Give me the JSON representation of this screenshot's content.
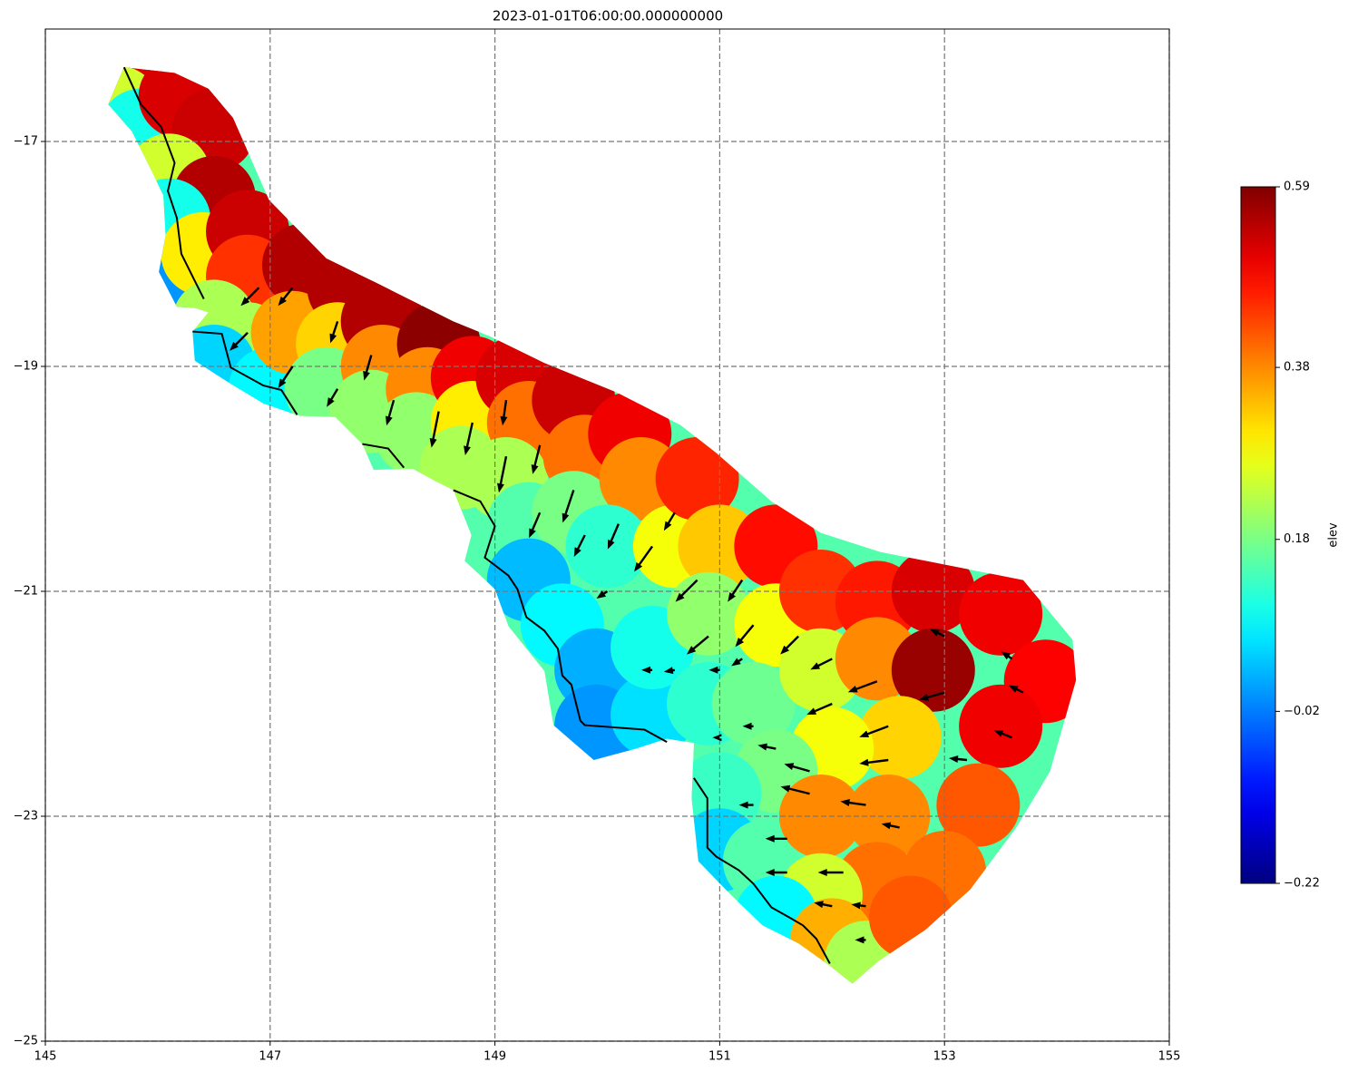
{
  "chart_data": {
    "type": "mesh-quiver",
    "title": "2023-01-01T06:00:00.000000000",
    "xlim": [
      145,
      155
    ],
    "ylim": [
      -25,
      -16
    ],
    "xticks": [
      145,
      147,
      149,
      151,
      153,
      155
    ],
    "yticks": [
      {
        "value": -25,
        "label": "−25"
      },
      {
        "value": -23,
        "label": "−23"
      },
      {
        "value": -21,
        "label": "−21"
      },
      {
        "value": -19,
        "label": "−19"
      },
      {
        "value": -17,
        "label": "−17"
      }
    ],
    "grid": true,
    "cmap": "jet",
    "clim": [
      -0.22,
      0.59
    ],
    "colorbar_label": "elev",
    "colorbar_ticks": [
      {
        "value": -0.22,
        "label": "−0.22"
      },
      {
        "value": -0.02,
        "label": "−0.02"
      },
      0.18,
      0.38,
      0.59
    ],
    "boundary": {
      "lon": [
        145.7,
        146.15,
        146.45,
        146.67,
        146.99,
        147.5,
        147.91,
        148.63,
        148.95,
        149.44,
        150.08,
        150.65,
        150.97,
        151.46,
        151.9,
        152.43,
        152.99,
        153.7,
        154.14,
        154.17,
        153.94,
        153.64,
        153.23,
        152.83,
        152.41,
        152.18,
        151.98,
        151.7,
        151.38,
        151.09,
        150.81,
        150.75,
        150.77,
        150.53,
        150.25,
        149.88,
        149.52,
        149.44,
        149.12,
        149.0,
        148.73,
        148.79,
        148.63,
        148.47,
        148.27,
        147.92,
        147.82,
        147.58,
        147.26,
        146.94,
        146.61,
        146.33,
        146.31,
        146.45,
        146.33,
        146.17,
        146.01,
        146.07,
        146.05,
        145.93,
        145.77,
        145.56
      ],
      "lat": [
        -16.34,
        -16.39,
        -16.53,
        -16.79,
        -17.52,
        -18.04,
        -18.24,
        -18.6,
        -18.73,
        -18.97,
        -19.23,
        -19.52,
        -19.77,
        -20.2,
        -20.48,
        -20.65,
        -20.76,
        -20.9,
        -21.43,
        -21.79,
        -22.6,
        -23.1,
        -23.65,
        -24.01,
        -24.29,
        -24.49,
        -24.33,
        -24.13,
        -23.97,
        -23.69,
        -23.4,
        -22.84,
        -22.35,
        -22.31,
        -22.4,
        -22.5,
        -22.19,
        -21.71,
        -21.31,
        -20.98,
        -20.73,
        -20.5,
        -20.1,
        -20.02,
        -19.91,
        -19.92,
        -19.69,
        -19.45,
        -19.44,
        -19.33,
        -19.13,
        -18.95,
        -18.69,
        -18.52,
        -18.48,
        -18.47,
        -18.16,
        -17.84,
        -17.48,
        -17.23,
        -16.91,
        -16.67
      ]
    },
    "coastline": {
      "lon": [
        145.7,
        145.85,
        146.03,
        146.15,
        146.09,
        146.17,
        146.21,
        146.33,
        146.41,
        null,
        146.31,
        146.57,
        146.65,
        146.94,
        147.1,
        147.24,
        null,
        147.82,
        148.05,
        148.19,
        null,
        148.63,
        148.87,
        149.0,
        148.91,
        149.12,
        149.2,
        149.28,
        149.44,
        149.56,
        149.6,
        149.68,
        149.76,
        149.8,
        150.33,
        150.53,
        null,
        150.77,
        150.89,
        150.89,
        150.97,
        151.17,
        151.3,
        151.46,
        151.62,
        151.74,
        151.86,
        151.98
      ],
      "lat": [
        -16.34,
        -16.67,
        -16.87,
        -17.19,
        -17.44,
        -17.68,
        -18.0,
        -18.24,
        -18.4,
        null,
        -18.69,
        -18.71,
        -19.01,
        -19.17,
        -19.21,
        -19.43,
        null,
        -19.69,
        -19.73,
        -19.9,
        null,
        -20.1,
        -20.2,
        -20.42,
        -20.7,
        -20.86,
        -20.98,
        -21.23,
        -21.35,
        -21.51,
        -21.75,
        -21.83,
        -22.15,
        -22.19,
        -22.23,
        -22.34,
        null,
        -22.66,
        -22.84,
        -23.28,
        -23.36,
        -23.48,
        -23.6,
        -23.81,
        -23.9,
        -23.97,
        -24.09,
        -24.31
      ]
    },
    "nodes": {
      "lon": [
        145.7,
        145.65,
        145.85,
        146.2,
        146.5,
        146.1,
        146.5,
        146.1,
        146.1,
        146.4,
        146.8,
        146.8,
        147.3,
        146.5,
        146.8,
        146.5,
        147.0,
        147.2,
        147.7,
        147.6,
        147.5,
        148.0,
        148.0,
        147.9,
        148.5,
        148.4,
        148.3,
        148.8,
        148.8,
        148.7,
        149.2,
        149.3,
        149.1,
        149.7,
        149.8,
        149.3,
        149.7,
        150.2,
        150.3,
        150.0,
        149.3,
        149.6,
        149.9,
        149.9,
        150.4,
        150.4,
        150.6,
        150.8,
        151.0,
        150.9,
        151.5,
        151.5,
        150.9,
        151.3,
        151.9,
        151.9,
        152.4,
        152.4,
        152.9,
        152.9,
        153.5,
        153.9,
        153.5,
        152.6,
        152.0,
        151.5,
        151.0,
        151.0,
        151.4,
        151.9,
        152.5,
        153.3,
        153.0,
        152.4,
        151.9,
        151.5,
        152.0,
        152.3,
        152.7
      ],
      "lat": [
        -16.5,
        -16.7,
        -16.9,
        -16.6,
        -16.9,
        -17.3,
        -17.5,
        -17.7,
        -18.2,
        -18.0,
        -17.8,
        -18.2,
        -18.1,
        -18.6,
        -18.8,
        -19.0,
        -19.2,
        -18.7,
        -18.3,
        -18.8,
        -19.2,
        -18.6,
        -19.0,
        -19.4,
        -18.8,
        -19.2,
        -19.6,
        -19.1,
        -19.5,
        -19.9,
        -19.1,
        -19.5,
        -20.0,
        -19.3,
        -19.8,
        -20.4,
        -20.3,
        -19.6,
        -20.0,
        -20.6,
        -20.9,
        -21.3,
        -21.7,
        -22.2,
        -22.1,
        -21.5,
        -20.6,
        -20.0,
        -20.6,
        -21.2,
        -20.6,
        -21.3,
        -22.0,
        -22.0,
        -21.0,
        -21.7,
        -21.1,
        -21.6,
        -21.0,
        -21.7,
        -21.2,
        -21.8,
        -22.2,
        -22.3,
        -22.4,
        -22.6,
        -22.8,
        -23.3,
        -23.4,
        -23.0,
        -23.0,
        -22.9,
        -23.5,
        -23.6,
        -23.7,
        -23.9,
        -24.1,
        -24.3,
        -23.9
      ],
      "elev": [
        0.52,
        0.25,
        0.1,
        0.52,
        0.53,
        0.25,
        0.55,
        0.1,
        0.0,
        0.3,
        0.53,
        0.45,
        0.55,
        0.22,
        0.22,
        0.05,
        0.08,
        0.36,
        0.55,
        0.32,
        0.18,
        0.55,
        0.38,
        0.2,
        0.58,
        0.38,
        0.2,
        0.5,
        0.3,
        0.22,
        0.52,
        0.4,
        0.22,
        0.53,
        0.4,
        0.15,
        0.18,
        0.5,
        0.38,
        0.12,
        0.03,
        0.08,
        0.02,
        0.0,
        0.06,
        0.1,
        0.28,
        0.46,
        0.33,
        0.2,
        0.48,
        0.28,
        0.12,
        0.17,
        0.45,
        0.25,
        0.47,
        0.38,
        0.52,
        0.57,
        0.5,
        0.49,
        0.5,
        0.32,
        0.28,
        0.18,
        0.13,
        0.05,
        0.15,
        0.38,
        0.38,
        0.42,
        0.4,
        0.4,
        0.25,
        0.08,
        0.35,
        0.22,
        0.42
      ]
    },
    "quiver": {
      "x": [
        146.9,
        147.2,
        146.8,
        147.2,
        147.6,
        147.9,
        147.6,
        148.1,
        148.5,
        148.8,
        149.1,
        149.1,
        149.4,
        149.7,
        149.4,
        149.8,
        150.1,
        150.4,
        150.6,
        150.0,
        150.8,
        151.2,
        150.9,
        151.3,
        151.7,
        152.0,
        152.0,
        152.4,
        152.5,
        153.0,
        152.5,
        151.5,
        151.8,
        151.8,
        151.3,
        152.3,
        151.6,
        152.6,
        151.6,
        152.1,
        151.3,
        151.0,
        152.3,
        152.3,
        153.2,
        153.6,
        153.7,
        153.6,
        152.0,
        153.0,
        150.4,
        150.6,
        151.0,
        151.2
      ],
      "y": [
        -18.3,
        -18.3,
        -18.7,
        -19.0,
        -18.6,
        -18.9,
        -19.2,
        -19.3,
        -19.4,
        -19.5,
        -19.3,
        -19.8,
        -19.7,
        -20.1,
        -20.3,
        -20.5,
        -20.4,
        -20.6,
        -20.3,
        -21.0,
        -20.9,
        -20.9,
        -21.4,
        -21.3,
        -21.4,
        -21.6,
        -22.0,
        -21.8,
        -22.2,
        -21.9,
        -22.5,
        -22.4,
        -22.6,
        -22.8,
        -22.9,
        -22.9,
        -23.2,
        -23.1,
        -23.5,
        -23.5,
        -22.2,
        -22.3,
        -23.8,
        -24.1,
        -22.5,
        -22.3,
        -21.9,
        -21.6,
        -23.8,
        -21.4,
        -21.7,
        -21.7,
        -21.7,
        -21.6
      ],
      "u": [
        -0.5,
        -0.4,
        -0.5,
        -0.4,
        -0.2,
        -0.2,
        -0.3,
        -0.2,
        -0.2,
        -0.2,
        -0.1,
        -0.2,
        -0.2,
        -0.3,
        -0.3,
        -0.3,
        -0.3,
        -0.5,
        -0.3,
        -0.3,
        -0.6,
        -0.4,
        -0.6,
        -0.5,
        -0.5,
        -0.6,
        -0.7,
        -0.8,
        -0.8,
        -0.7,
        -0.8,
        -0.5,
        -0.7,
        -0.8,
        -0.4,
        -0.7,
        -0.6,
        -0.5,
        -0.6,
        -0.7,
        -0.3,
        -0.2,
        -0.4,
        -0.3,
        -0.5,
        -0.5,
        -0.4,
        -0.3,
        -0.5,
        -0.4,
        -0.3,
        -0.3,
        -0.3,
        -0.3
      ],
      "v": [
        -0.5,
        -0.5,
        -0.5,
        -0.6,
        -0.6,
        -0.7,
        -0.5,
        -0.7,
        -1.0,
        -0.9,
        -0.7,
        -1.0,
        -0.8,
        -0.9,
        -0.7,
        -0.6,
        -0.7,
        -0.7,
        -0.5,
        -0.2,
        -0.6,
        -0.6,
        -0.5,
        -0.6,
        -0.5,
        -0.3,
        -0.3,
        -0.3,
        -0.3,
        -0.2,
        -0.1,
        0.1,
        0.2,
        0.2,
        0,
        0.1,
        0,
        0.1,
        0,
        0,
        0,
        0,
        0.05,
        0,
        0.05,
        0.2,
        0.2,
        0.2,
        0.1,
        0.2,
        0,
        -0.05,
        0,
        -0.2
      ]
    }
  }
}
